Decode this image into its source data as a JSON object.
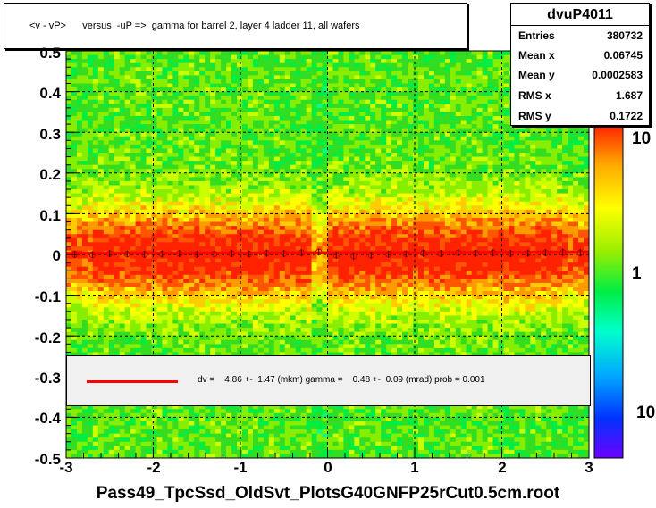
{
  "title": "<v - vP>      versus  -uP =>  gamma for barrel 2, layer 4 ladder 11, all wafers",
  "stats": {
    "name": "dvuP4011",
    "rows": [
      {
        "key": "Entries",
        "value": "380732"
      },
      {
        "key": "Mean x",
        "value": "0.06745"
      },
      {
        "key": "Mean y",
        "value": "0.0002583"
      },
      {
        "key": "RMS x",
        "value": "1.687"
      },
      {
        "key": "RMS y",
        "value": "0.1722"
      }
    ]
  },
  "legend": {
    "text": "dv =    4.86 +-  1.47 (mkm) gamma =    0.48 +-  0.09 (mrad) prob = 0.001",
    "line_color": "#ff0000"
  },
  "x_axis_title": "Pass49_TpcSsd_OldSvt_PlotsG40GNFP25rCut0.5cm.root",
  "chart_data": {
    "type": "heatmap",
    "xlim": [
      -3,
      3
    ],
    "ylim": [
      -0.5,
      0.5
    ],
    "x_ticks": [
      "-3",
      "-2",
      "-1",
      "0",
      "1",
      "2",
      "3"
    ],
    "y_ticks": [
      "-0.5",
      "-0.4",
      "-0.3",
      "-0.2",
      "-0.1",
      "0",
      "0.1",
      "0.2",
      "0.3",
      "0.4",
      "0.5"
    ],
    "z_scale": "log",
    "z_ticks": [
      "10",
      "1",
      "10"
    ],
    "grid": true,
    "profile": {
      "x": [
        -2.9,
        -2.7,
        -2.5,
        -2.3,
        -2.1,
        -1.9,
        -1.7,
        -1.5,
        -1.3,
        -1.1,
        -0.9,
        -0.7,
        -0.5,
        -0.3,
        -0.1,
        0.1,
        0.3,
        0.5,
        0.7,
        0.9,
        1.1,
        1.3,
        1.5,
        1.7,
        1.9,
        2.1,
        2.3,
        2.5,
        2.7,
        2.9
      ],
      "y": [
        0.0,
        -0.001,
        0.002,
        0.001,
        0.0,
        0.001,
        0.002,
        0.0,
        0.001,
        0.002,
        0.001,
        0.003,
        0.002,
        0.004,
        0.006,
        -0.002,
        -0.004,
        -0.002,
        0.0,
        0.001,
        0.003,
        0.002,
        0.004,
        0.003,
        0.004,
        0.002,
        0.003,
        0.004,
        0.005,
        0.004
      ]
    },
    "fit": {
      "slope": 0.00048,
      "intercept": 0.00486
    }
  },
  "colors": {
    "palette": [
      "#6b00ff",
      "#3300ff",
      "#0044ff",
      "#0099ff",
      "#00ccff",
      "#00ffd5",
      "#00ff88",
      "#00ee44",
      "#33dd22",
      "#88ee00",
      "#ccff00",
      "#ffff00",
      "#ffcc00",
      "#ff9900",
      "#ff5500",
      "#ff2200"
    ],
    "fit_line": "#ff0000",
    "marker": "#cc0000"
  }
}
